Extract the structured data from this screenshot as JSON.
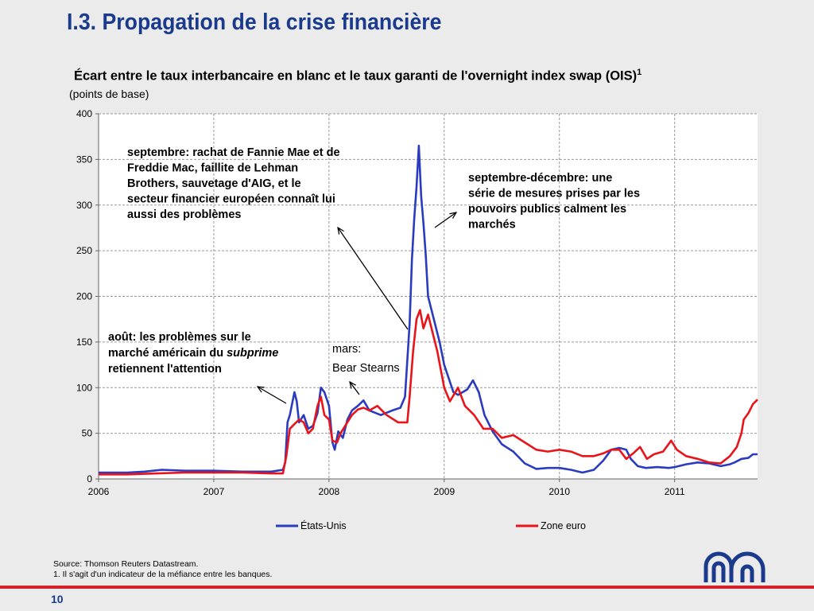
{
  "slide": {
    "title": "I.3. Propagation de la crise financière",
    "page_number": "10",
    "source": "Source: Thomson Reuters Datastream.",
    "footnote": "1. Il s'agit d'un indicateur de la méfiance entre les banques."
  },
  "colors": {
    "title": "#1a3a8c",
    "us": "#2a3bbf",
    "euro": "#e8141a",
    "rule": "#d4202a"
  },
  "chart_data": {
    "type": "line",
    "title": "Écart entre le taux interbancaire en blanc et le taux garanti de l'overnight index swap (OIS)",
    "title_footnote_mark": "1",
    "subtitle": "(points de base)",
    "x_tick_labels": [
      "2006",
      "2007",
      "2008",
      "2009",
      "2010",
      "2011"
    ],
    "xlim": [
      2006,
      2011.72
    ],
    "ylim": [
      0,
      400
    ],
    "y_ticks": [
      0,
      50,
      100,
      150,
      200,
      250,
      300,
      350,
      400
    ],
    "grid": true,
    "legend_position": "bottom",
    "series": [
      {
        "name": "États-Unis",
        "points": [
          [
            2006.0,
            7
          ],
          [
            2006.25,
            7
          ],
          [
            2006.4,
            8
          ],
          [
            2006.55,
            10
          ],
          [
            2006.75,
            9
          ],
          [
            2007.0,
            9
          ],
          [
            2007.25,
            8
          ],
          [
            2007.5,
            8
          ],
          [
            2007.6,
            10
          ],
          [
            2007.62,
            18
          ],
          [
            2007.64,
            62
          ],
          [
            2007.66,
            70
          ],
          [
            2007.7,
            95
          ],
          [
            2007.72,
            85
          ],
          [
            2007.74,
            62
          ],
          [
            2007.78,
            70
          ],
          [
            2007.82,
            55
          ],
          [
            2007.86,
            58
          ],
          [
            2007.9,
            72
          ],
          [
            2007.93,
            100
          ],
          [
            2007.96,
            95
          ],
          [
            2008.0,
            80
          ],
          [
            2008.03,
            40
          ],
          [
            2008.05,
            32
          ],
          [
            2008.08,
            52
          ],
          [
            2008.12,
            45
          ],
          [
            2008.16,
            65
          ],
          [
            2008.2,
            75
          ],
          [
            2008.25,
            80
          ],
          [
            2008.3,
            86
          ],
          [
            2008.35,
            75
          ],
          [
            2008.45,
            70
          ],
          [
            2008.55,
            75
          ],
          [
            2008.62,
            78
          ],
          [
            2008.66,
            90
          ],
          [
            2008.7,
            170
          ],
          [
            2008.72,
            240
          ],
          [
            2008.74,
            285
          ],
          [
            2008.76,
            320
          ],
          [
            2008.78,
            365
          ],
          [
            2008.8,
            310
          ],
          [
            2008.82,
            280
          ],
          [
            2008.84,
            245
          ],
          [
            2008.86,
            200
          ],
          [
            2008.88,
            190
          ],
          [
            2008.92,
            170
          ],
          [
            2008.96,
            150
          ],
          [
            2009.0,
            125
          ],
          [
            2009.04,
            110
          ],
          [
            2009.08,
            95
          ],
          [
            2009.12,
            92
          ],
          [
            2009.2,
            98
          ],
          [
            2009.25,
            108
          ],
          [
            2009.3,
            95
          ],
          [
            2009.35,
            70
          ],
          [
            2009.42,
            52
          ],
          [
            2009.5,
            38
          ],
          [
            2009.6,
            30
          ],
          [
            2009.7,
            17
          ],
          [
            2009.8,
            11
          ],
          [
            2009.9,
            12
          ],
          [
            2010.0,
            12
          ],
          [
            2010.1,
            10
          ],
          [
            2010.2,
            7
          ],
          [
            2010.3,
            10
          ],
          [
            2010.38,
            20
          ],
          [
            2010.45,
            32
          ],
          [
            2010.52,
            34
          ],
          [
            2010.58,
            32
          ],
          [
            2010.62,
            22
          ],
          [
            2010.68,
            14
          ],
          [
            2010.75,
            12
          ],
          [
            2010.85,
            13
          ],
          [
            2010.95,
            12
          ],
          [
            2011.0,
            13
          ],
          [
            2011.1,
            16
          ],
          [
            2011.2,
            18
          ],
          [
            2011.3,
            17
          ],
          [
            2011.4,
            14
          ],
          [
            2011.48,
            16
          ],
          [
            2011.52,
            18
          ],
          [
            2011.58,
            22
          ],
          [
            2011.64,
            23
          ],
          [
            2011.68,
            27
          ],
          [
            2011.72,
            27
          ]
        ]
      },
      {
        "name": "Zone euro",
        "points": [
          [
            2006.0,
            5
          ],
          [
            2006.25,
            5
          ],
          [
            2006.5,
            6
          ],
          [
            2006.75,
            7
          ],
          [
            2007.0,
            7
          ],
          [
            2007.25,
            7
          ],
          [
            2007.5,
            6
          ],
          [
            2007.6,
            6
          ],
          [
            2007.63,
            25
          ],
          [
            2007.66,
            55
          ],
          [
            2007.7,
            60
          ],
          [
            2007.74,
            65
          ],
          [
            2007.78,
            62
          ],
          [
            2007.82,
            50
          ],
          [
            2007.86,
            55
          ],
          [
            2007.9,
            80
          ],
          [
            2007.93,
            90
          ],
          [
            2007.96,
            70
          ],
          [
            2008.0,
            65
          ],
          [
            2008.03,
            42
          ],
          [
            2008.07,
            40
          ],
          [
            2008.1,
            50
          ],
          [
            2008.15,
            60
          ],
          [
            2008.2,
            70
          ],
          [
            2008.25,
            76
          ],
          [
            2008.3,
            78
          ],
          [
            2008.35,
            75
          ],
          [
            2008.42,
            80
          ],
          [
            2008.5,
            70
          ],
          [
            2008.6,
            62
          ],
          [
            2008.68,
            62
          ],
          [
            2008.7,
            90
          ],
          [
            2008.73,
            140
          ],
          [
            2008.76,
            175
          ],
          [
            2008.79,
            185
          ],
          [
            2008.82,
            165
          ],
          [
            2008.86,
            180
          ],
          [
            2008.9,
            160
          ],
          [
            2008.94,
            140
          ],
          [
            2009.0,
            100
          ],
          [
            2009.05,
            85
          ],
          [
            2009.12,
            100
          ],
          [
            2009.18,
            80
          ],
          [
            2009.26,
            70
          ],
          [
            2009.34,
            55
          ],
          [
            2009.42,
            55
          ],
          [
            2009.5,
            45
          ],
          [
            2009.6,
            48
          ],
          [
            2009.7,
            40
          ],
          [
            2009.8,
            32
          ],
          [
            2009.9,
            30
          ],
          [
            2010.0,
            32
          ],
          [
            2010.1,
            30
          ],
          [
            2010.2,
            25
          ],
          [
            2010.3,
            25
          ],
          [
            2010.38,
            28
          ],
          [
            2010.45,
            32
          ],
          [
            2010.52,
            32
          ],
          [
            2010.58,
            22
          ],
          [
            2010.64,
            28
          ],
          [
            2010.7,
            35
          ],
          [
            2010.76,
            22
          ],
          [
            2010.82,
            27
          ],
          [
            2010.9,
            30
          ],
          [
            2010.97,
            42
          ],
          [
            2011.02,
            32
          ],
          [
            2011.1,
            25
          ],
          [
            2011.2,
            22
          ],
          [
            2011.3,
            18
          ],
          [
            2011.4,
            17
          ],
          [
            2011.48,
            25
          ],
          [
            2011.54,
            35
          ],
          [
            2011.58,
            50
          ],
          [
            2011.6,
            65
          ],
          [
            2011.64,
            72
          ],
          [
            2011.68,
            82
          ],
          [
            2011.72,
            87
          ]
        ]
      }
    ],
    "annotations": [
      {
        "id": "ann-september",
        "lines": [
          "septembre: rachat de Fannie Mae et de",
          "Freddie Mac, faillite de Lehman",
          "Brothers, sauvetage d'AIG, et le",
          "secteur financier européen connaît lui",
          "aussi des problèmes"
        ]
      },
      {
        "id": "ann-sept-dec",
        "lines": [
          "septembre-décembre:  une",
          "série de mesures prises par les",
          "pouvoirs publics calment les",
          "marchés"
        ]
      },
      {
        "id": "ann-august",
        "line1": "août: les problèmes sur le",
        "line2_prefix": "marché américain du ",
        "line2_italic": "subprime",
        "line3": "retiennent l'attention"
      },
      {
        "id": "ann-march",
        "lines": [
          "mars:",
          "Bear Stearns"
        ]
      }
    ]
  }
}
